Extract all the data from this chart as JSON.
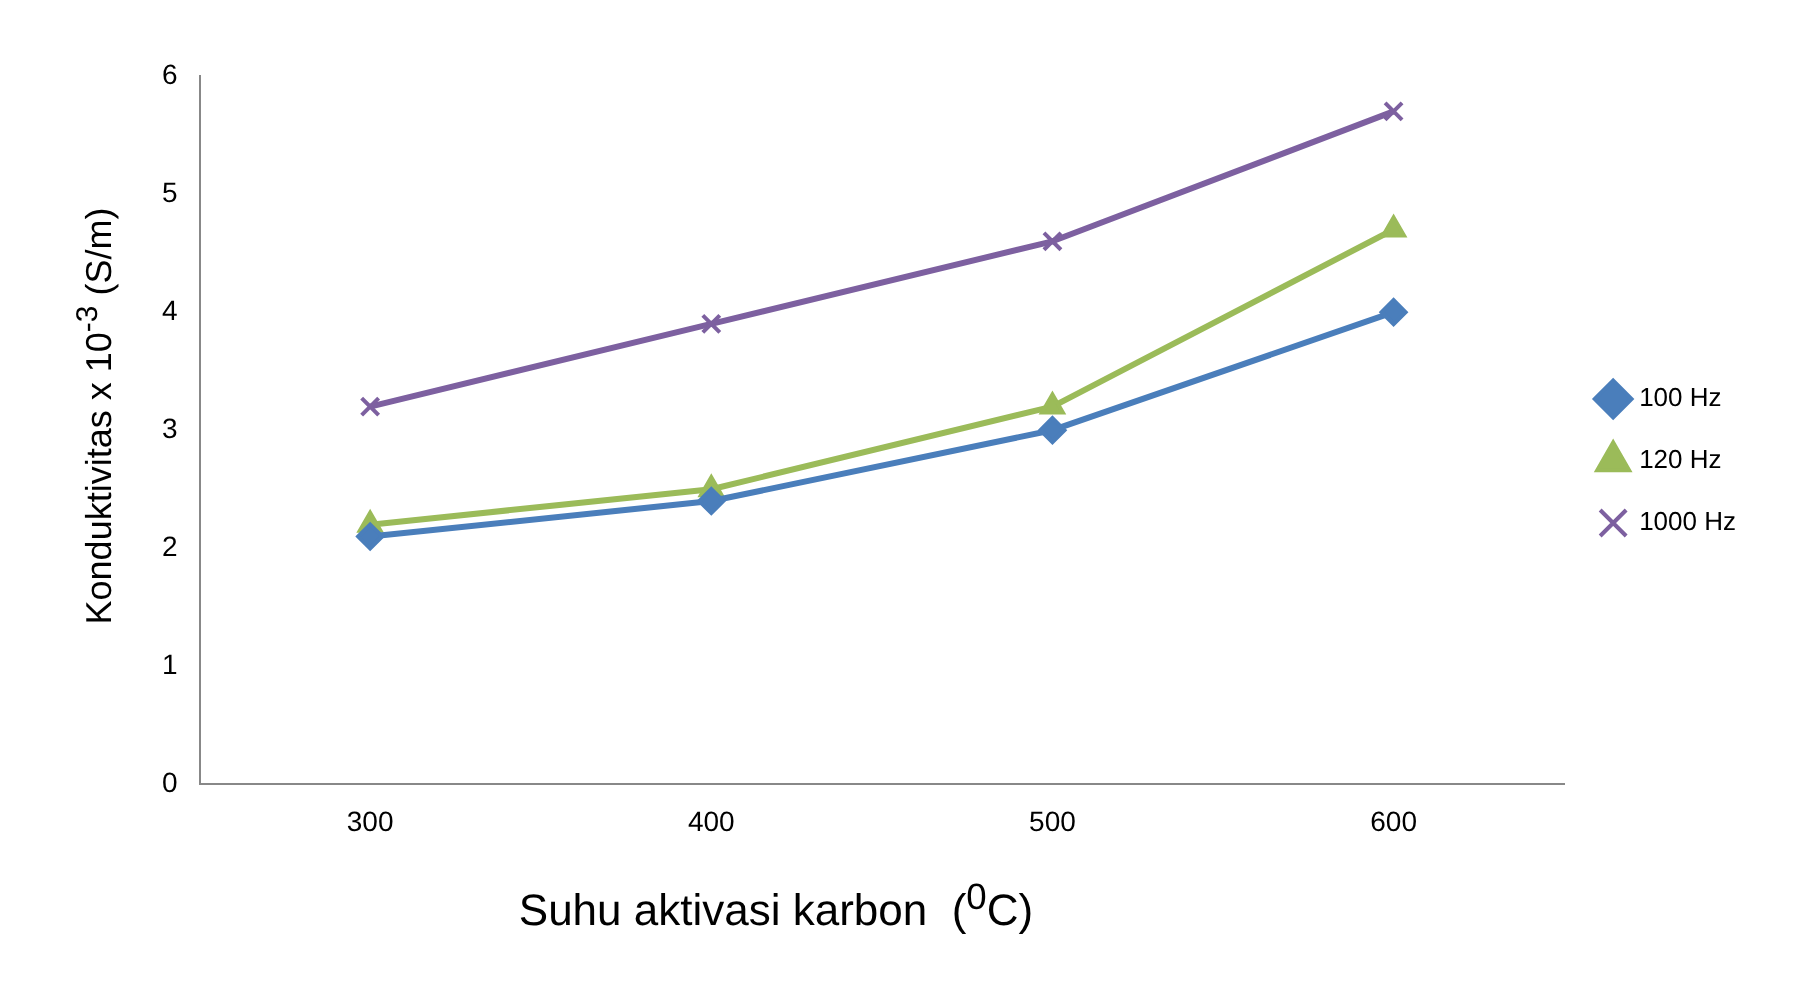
{
  "chart_data": {
    "type": "line",
    "xlabel": "Suhu aktivasi karbon  ($^{0}$C)",
    "ylabel": "Konduktivitas x 10$^{-3}$ (S/m)",
    "categories": [
      "300",
      "400",
      "500",
      "600"
    ],
    "series": [
      {
        "name": "100 Hz",
        "color": "#4a7ebb",
        "marker": "diamond",
        "values": [
          2.1,
          2.4,
          3.0,
          4.0
        ]
      },
      {
        "name": "120 Hz",
        "color": "#9bbb59",
        "marker": "triangle",
        "values": [
          2.2,
          2.5,
          3.2,
          4.7
        ]
      },
      {
        "name": "1000 Hz",
        "color": "#7d60a0",
        "marker": "cross",
        "values": [
          3.2,
          3.9,
          4.6,
          5.7
        ]
      }
    ],
    "ylim": [
      0,
      6
    ],
    "yticks": [
      0,
      1,
      2,
      3,
      4,
      5,
      6
    ],
    "grid": false,
    "legend": "right",
    "line_style": "solid"
  }
}
